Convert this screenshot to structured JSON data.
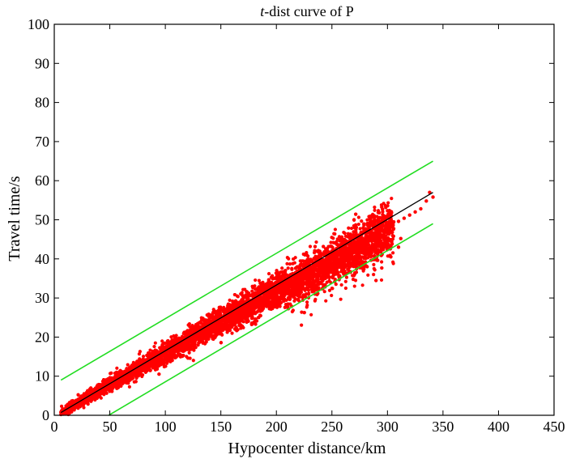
{
  "chart_data": {
    "type": "scatter",
    "title_italic": "t",
    "title_rest": "-dist curve of P",
    "xlabel": "Hypocenter distance/km",
    "ylabel": "Travel time/s",
    "xlim": [
      0,
      450
    ],
    "ylim": [
      0,
      100
    ],
    "xticks": [
      "0",
      "50",
      "100",
      "150",
      "200",
      "250",
      "300",
      "350",
      "400",
      "450"
    ],
    "yticks": [
      "0",
      "10",
      "20",
      "30",
      "40",
      "50",
      "60",
      "70",
      "80",
      "90",
      "100"
    ],
    "grid": false,
    "scatter": {
      "color": "#ff0000",
      "description_points": [
        [
          6,
          0.8
        ],
        [
          10,
          1.5
        ],
        [
          15,
          2.3
        ],
        [
          20,
          3.1
        ],
        [
          25,
          4.0
        ],
        [
          30,
          4.8
        ],
        [
          35,
          5.6
        ],
        [
          40,
          6.4
        ],
        [
          45,
          7.2
        ],
        [
          50,
          8.1
        ],
        [
          55,
          8.9
        ],
        [
          60,
          9.7
        ],
        [
          65,
          10.5
        ],
        [
          70,
          11.3
        ],
        [
          75,
          12.1
        ],
        [
          80,
          12.9
        ],
        [
          85,
          13.7
        ],
        [
          90,
          14.5
        ],
        [
          95,
          15.3
        ],
        [
          100,
          16.1
        ],
        [
          105,
          16.9
        ],
        [
          110,
          17.7
        ],
        [
          115,
          18.5
        ],
        [
          120,
          19.3
        ],
        [
          125,
          20.1
        ],
        [
          130,
          20.9
        ],
        [
          135,
          21.7
        ],
        [
          140,
          22.4
        ],
        [
          145,
          23.2
        ],
        [
          150,
          24.0
        ],
        [
          155,
          24.8
        ],
        [
          160,
          25.6
        ],
        [
          165,
          26.4
        ],
        [
          170,
          27.2
        ],
        [
          175,
          28.0
        ],
        [
          180,
          28.8
        ],
        [
          185,
          29.6
        ],
        [
          190,
          30.4
        ],
        [
          195,
          31.2
        ],
        [
          200,
          32.0
        ],
        [
          205,
          32.8
        ],
        [
          210,
          33.6
        ],
        [
          215,
          34.4
        ],
        [
          220,
          35.2
        ],
        [
          225,
          36.0
        ],
        [
          230,
          36.8
        ],
        [
          235,
          37.6
        ],
        [
          240,
          38.4
        ],
        [
          245,
          39.2
        ],
        [
          250,
          40.0
        ],
        [
          255,
          40.8
        ],
        [
          260,
          41.6
        ],
        [
          265,
          42.4
        ],
        [
          270,
          43.2
        ],
        [
          275,
          44.0
        ],
        [
          280,
          44.8
        ],
        [
          285,
          45.6
        ],
        [
          290,
          46.4
        ],
        [
          295,
          47.2
        ],
        [
          300,
          48.0
        ],
        [
          305,
          48.8
        ],
        [
          310,
          49.6
        ],
        [
          315,
          50.4
        ],
        [
          320,
          51.2
        ],
        [
          325,
          52.0
        ],
        [
          330,
          52.8
        ],
        [
          335,
          54.8
        ],
        [
          338,
          57.0
        ],
        [
          341,
          55.8
        ],
        [
          12,
          2.6
        ],
        [
          30,
          6.2
        ],
        [
          50,
          9.6
        ],
        [
          70,
          12.8
        ],
        [
          90,
          16.0
        ],
        [
          110,
          19.2
        ],
        [
          130,
          22.2
        ],
        [
          150,
          25.6
        ],
        [
          170,
          28.8
        ],
        [
          190,
          31.6
        ],
        [
          210,
          34.8
        ],
        [
          230,
          38.4
        ],
        [
          250,
          42.0
        ],
        [
          260,
          44.6
        ],
        [
          270,
          46.0
        ],
        [
          285,
          48.8
        ],
        [
          295,
          48.0
        ],
        [
          305,
          49.2
        ],
        [
          28,
          3.6
        ],
        [
          48,
          6.8
        ],
        [
          68,
          9.8
        ],
        [
          88,
          13.0
        ],
        [
          108,
          16.0
        ],
        [
          128,
          19.4
        ],
        [
          148,
          22.6
        ],
        [
          168,
          25.8
        ],
        [
          188,
          28.8
        ],
        [
          208,
          31.2
        ],
        [
          228,
          34.4
        ],
        [
          248,
          37.2
        ],
        [
          258,
          38.2
        ],
        [
          265,
          40.0
        ],
        [
          283,
          42.2
        ],
        [
          290,
          44.6
        ],
        [
          300,
          44.8
        ],
        [
          312,
          45.2
        ],
        [
          310,
          43.0
        ]
      ]
    },
    "series": [
      {
        "name": "",
        "color": "#000000",
        "x": [
          6,
          341
        ],
        "y": [
          0.7,
          57.0
        ]
      },
      {
        "name": "",
        "color": "#22dd22",
        "x": [
          6,
          341
        ],
        "y": [
          9.0,
          65.0
        ]
      },
      {
        "name": "",
        "color": "#22dd22",
        "x": [
          49,
          341
        ],
        "y": [
          0,
          49.0
        ]
      }
    ]
  }
}
